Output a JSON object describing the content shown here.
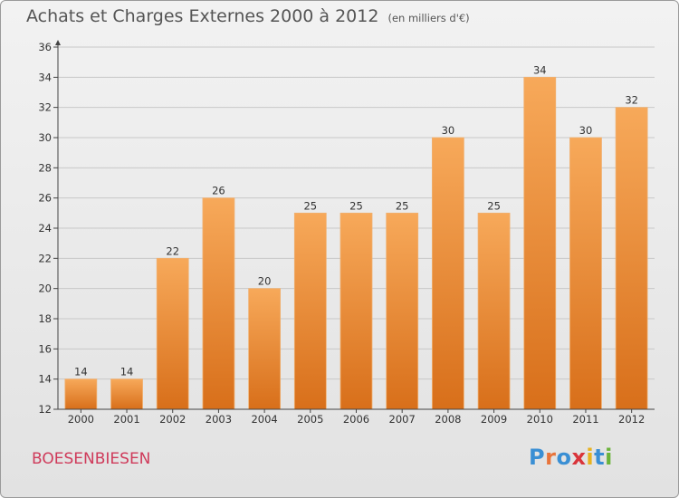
{
  "title": "Achats et Charges Externes 2000 à 2012",
  "unit": "(en milliers d'€)",
  "commune": "BOESENBIESEN",
  "logo": {
    "letters": [
      "P",
      "r",
      "o",
      "x",
      "i",
      "t",
      "i"
    ],
    "colors": [
      "#3a8fd4",
      "#e8743b",
      "#3a8fd4",
      "#d9343a",
      "#e8b21f",
      "#3a8fd4",
      "#6bb33a"
    ]
  },
  "colors": {
    "bar_top": "#f7a95a",
    "bar_bottom": "#d86f1a",
    "bar_edge": "#f0b070",
    "grid": "#c8c8c8",
    "axis": "#444444"
  },
  "chart_data": {
    "type": "bar",
    "title": "Achats et Charges Externes 2000 à 2012",
    "unit": "(en milliers d'€)",
    "categories": [
      "2000",
      "2001",
      "2002",
      "2003",
      "2004",
      "2005",
      "2006",
      "2007",
      "2008",
      "2009",
      "2010",
      "2011",
      "2012"
    ],
    "values": [
      14,
      14,
      22,
      26,
      20,
      25,
      25,
      25,
      30,
      25,
      34,
      30,
      32
    ],
    "ylim": [
      12,
      36
    ],
    "yticks": [
      12,
      14,
      16,
      18,
      20,
      22,
      24,
      26,
      28,
      30,
      32,
      34,
      36
    ],
    "grid": true,
    "value_labels": true
  }
}
